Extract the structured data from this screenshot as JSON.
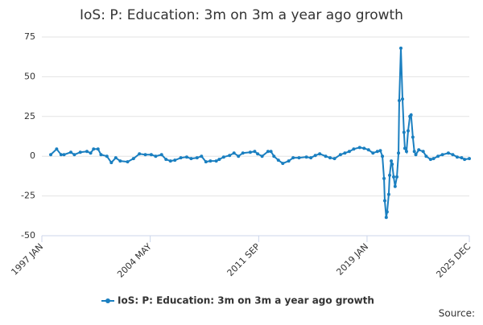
{
  "chart_data": {
    "type": "line",
    "title": "IoS: P: Education: 3m on 3m a year ago growth",
    "source": "Source:",
    "xlim": [
      1997.0,
      2025.92
    ],
    "xticks": [
      {
        "value": 1997.0,
        "label": "1997 JAN"
      },
      {
        "value": 2004.33,
        "label": "2004 MAY"
      },
      {
        "value": 2011.67,
        "label": "2011 SEP"
      },
      {
        "value": 2019.0,
        "label": "2019 JAN"
      },
      {
        "value": 2025.92,
        "label": "2025 DEC"
      }
    ],
    "ylim": [
      -50,
      75
    ],
    "yticks": [
      -50,
      -25,
      0,
      25,
      50,
      75
    ],
    "grid": true,
    "x": [
      1997.6,
      1998.0,
      1998.3,
      1998.5,
      1998.96,
      1999.2,
      1999.6,
      2000.05,
      2000.3,
      2000.5,
      2000.8,
      2001.0,
      2001.4,
      2001.7,
      2002.0,
      2002.3,
      2002.8,
      2003.2,
      2003.6,
      2004.0,
      2004.4,
      2004.7,
      2005.1,
      2005.4,
      2005.7,
      2006.0,
      2006.4,
      2006.8,
      2007.1,
      2007.5,
      2007.8,
      2008.1,
      2008.4,
      2008.8,
      2009.0,
      2009.3,
      2009.7,
      2010.0,
      2010.3,
      2010.6,
      2011.1,
      2011.4,
      2011.6,
      2011.9,
      2012.3,
      2012.5,
      2012.7,
      2013.0,
      2013.3,
      2013.7,
      2014.0,
      2014.4,
      2014.9,
      2015.2,
      2015.5,
      2015.8,
      2016.2,
      2016.5,
      2016.8,
      2017.2,
      2017.5,
      2017.8,
      2018.1,
      2018.5,
      2018.8,
      2019.1,
      2019.4,
      2019.7,
      2019.9,
      2020.04,
      2020.15,
      2020.2,
      2020.3,
      2020.36,
      2020.47,
      2020.53,
      2020.64,
      2020.7,
      2020.8,
      2020.9,
      2021.02,
      2021.13,
      2021.18,
      2021.29,
      2021.4,
      2021.5,
      2021.56,
      2021.67,
      2021.78,
      2021.9,
      2021.98,
      2022.1,
      2022.2,
      2022.3,
      2022.5,
      2022.8,
      2023.0,
      2023.3,
      2023.5,
      2023.8,
      2024.1,
      2024.5,
      2024.8,
      2025.1,
      2025.4,
      2025.6,
      2025.92
    ],
    "series": [
      {
        "name": "IoS: P: Education: 3m on 3m a year ago growth",
        "color": "#1a7fc0",
        "values": [
          1,
          4.5,
          1,
          1,
          2.5,
          1,
          2.5,
          3,
          2,
          4.5,
          4.5,
          1,
          0,
          -4,
          -1,
          -3,
          -3.5,
          -1.5,
          1.5,
          1,
          1,
          0,
          1,
          -2,
          -3,
          -2.5,
          -1,
          -0.5,
          -1.5,
          -1,
          0,
          -3.5,
          -3,
          -3,
          -2,
          -0.5,
          0.5,
          2,
          0,
          2,
          2.5,
          3,
          1.5,
          0,
          3,
          3,
          0,
          -2.5,
          -4.5,
          -3,
          -1,
          -1,
          -0.5,
          -1,
          0.5,
          1.5,
          0,
          -1,
          -1.5,
          1,
          2,
          3,
          4.5,
          5.5,
          5,
          4,
          2,
          3,
          3.5,
          0,
          -14,
          -28,
          -38.5,
          -35,
          -24,
          -12,
          -3,
          -5,
          -13,
          -19,
          -13,
          2,
          35,
          68,
          36,
          15,
          5,
          3,
          16,
          25,
          26,
          12,
          3,
          1,
          4,
          3,
          0,
          -2,
          -1.5,
          0,
          1,
          2,
          1,
          -0.5,
          -1,
          -2,
          -1.5
        ]
      }
    ]
  }
}
